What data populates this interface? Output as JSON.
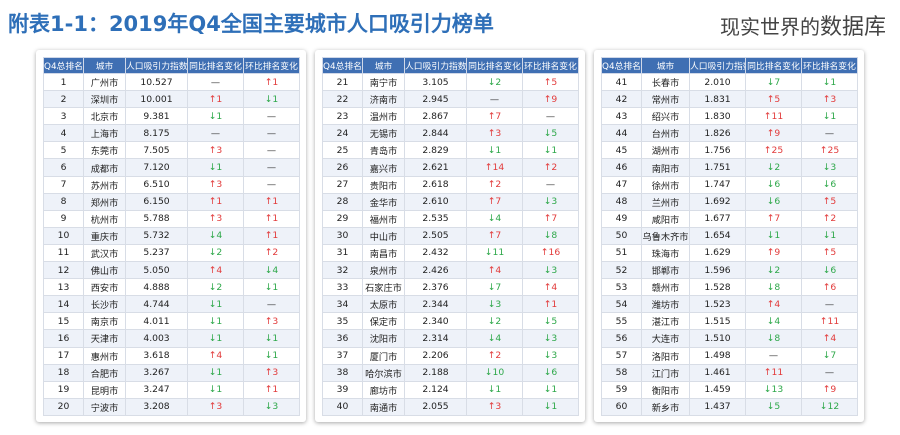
{
  "title": "附表1-1：2019年Q4全国主要城市人口吸引力榜单",
  "brand": {
    "part1": "现实世界的",
    "part2": "数据库"
  },
  "columns": [
    "Q4总排名",
    "城市",
    "人口吸引力指数",
    "同比排名变化",
    "环比排名变化"
  ],
  "panels": [
    {
      "rows": [
        [
          1,
          "广州市",
          "10.527",
          "—",
          "↑1"
        ],
        [
          2,
          "深圳市",
          "10.001",
          "↑1",
          "↓1"
        ],
        [
          3,
          "北京市",
          "9.381",
          "↓1",
          "—"
        ],
        [
          4,
          "上海市",
          "8.175",
          "—",
          "—"
        ],
        [
          5,
          "东莞市",
          "7.505",
          "↑3",
          "—"
        ],
        [
          6,
          "成都市",
          "7.120",
          "↓1",
          "—"
        ],
        [
          7,
          "苏州市",
          "6.510",
          "↑3",
          "—"
        ],
        [
          8,
          "郑州市",
          "6.150",
          "↑1",
          "↑1"
        ],
        [
          9,
          "杭州市",
          "5.788",
          "↑3",
          "↑1"
        ],
        [
          10,
          "重庆市",
          "5.732",
          "↓4",
          "↑1"
        ],
        [
          11,
          "武汉市",
          "5.237",
          "↓2",
          "↑2"
        ],
        [
          12,
          "佛山市",
          "5.050",
          "↑4",
          "↓4"
        ],
        [
          13,
          "西安市",
          "4.888",
          "↓2",
          "↓1"
        ],
        [
          14,
          "长沙市",
          "4.744",
          "↓1",
          "—"
        ],
        [
          15,
          "南京市",
          "4.011",
          "↓1",
          "↑3"
        ],
        [
          16,
          "天津市",
          "4.003",
          "↓1",
          "↓1"
        ],
        [
          17,
          "惠州市",
          "3.618",
          "↑4",
          "↓1"
        ],
        [
          18,
          "合肥市",
          "3.267",
          "↓1",
          "↑3"
        ],
        [
          19,
          "昆明市",
          "3.247",
          "↓1",
          "↑1"
        ],
        [
          20,
          "宁波市",
          "3.208",
          "↑3",
          "↓3"
        ]
      ]
    },
    {
      "rows": [
        [
          21,
          "南宁市",
          "3.105",
          "↓2",
          "↑5"
        ],
        [
          22,
          "济南市",
          "2.945",
          "—",
          "↑9"
        ],
        [
          23,
          "温州市",
          "2.867",
          "↑7",
          "—"
        ],
        [
          24,
          "无锡市",
          "2.844",
          "↑3",
          "↓5"
        ],
        [
          25,
          "青岛市",
          "2.829",
          "↓1",
          "↓1"
        ],
        [
          26,
          "嘉兴市",
          "2.621",
          "↑14",
          "↑2"
        ],
        [
          27,
          "贵阳市",
          "2.618",
          "↑2",
          "—"
        ],
        [
          28,
          "金华市",
          "2.610",
          "↑7",
          "↓3"
        ],
        [
          29,
          "福州市",
          "2.535",
          "↓4",
          "↑7"
        ],
        [
          30,
          "中山市",
          "2.505",
          "↑7",
          "↓8"
        ],
        [
          31,
          "南昌市",
          "2.432",
          "↓11",
          "↑16"
        ],
        [
          32,
          "泉州市",
          "2.426",
          "↑4",
          "↓3"
        ],
        [
          33,
          "石家庄市",
          "2.376",
          "↓7",
          "↑4"
        ],
        [
          34,
          "太原市",
          "2.344",
          "↓3",
          "↑1"
        ],
        [
          35,
          "保定市",
          "2.340",
          "↓2",
          "↓5"
        ],
        [
          36,
          "沈阳市",
          "2.314",
          "↓4",
          "↓3"
        ],
        [
          37,
          "厦门市",
          "2.206",
          "↑2",
          "↓3"
        ],
        [
          38,
          "哈尔滨市",
          "2.188",
          "↓10",
          "↓6"
        ],
        [
          39,
          "廊坊市",
          "2.124",
          "↓1",
          "↓1"
        ],
        [
          40,
          "南通市",
          "2.055",
          "↑3",
          "↓1"
        ]
      ]
    },
    {
      "rows": [
        [
          41,
          "长春市",
          "2.010",
          "↓7",
          "↓1"
        ],
        [
          42,
          "常州市",
          "1.831",
          "↑5",
          "↑3"
        ],
        [
          43,
          "绍兴市",
          "1.830",
          "↑11",
          "↓1"
        ],
        [
          44,
          "台州市",
          "1.826",
          "↑9",
          "—"
        ],
        [
          45,
          "湖州市",
          "1.756",
          "↑25",
          "↑25"
        ],
        [
          46,
          "南阳市",
          "1.751",
          "↓2",
          "↓3"
        ],
        [
          47,
          "徐州市",
          "1.747",
          "↓6",
          "↓6"
        ],
        [
          48,
          "兰州市",
          "1.692",
          "↓6",
          "↑5"
        ],
        [
          49,
          "咸阳市",
          "1.677",
          "↑7",
          "↑2"
        ],
        [
          50,
          "乌鲁木齐市",
          "1.654",
          "↓1",
          "↓1"
        ],
        [
          51,
          "珠海市",
          "1.629",
          "↑9",
          "↑5"
        ],
        [
          52,
          "邯郸市",
          "1.596",
          "↓2",
          "↓6"
        ],
        [
          53,
          "赣州市",
          "1.528",
          "↓8",
          "↑6"
        ],
        [
          54,
          "潍坊市",
          "1.523",
          "↑4",
          "—"
        ],
        [
          55,
          "湛江市",
          "1.515",
          "↓4",
          "↑11"
        ],
        [
          56,
          "大连市",
          "1.510",
          "↓8",
          "↑4"
        ],
        [
          57,
          "洛阳市",
          "1.498",
          "—",
          "↓7"
        ],
        [
          58,
          "江门市",
          "1.461",
          "↑11",
          "—"
        ],
        [
          59,
          "衡阳市",
          "1.459",
          "↓13",
          "↑9"
        ],
        [
          60,
          "新乡市",
          "1.437",
          "↓5",
          "↓12"
        ]
      ]
    }
  ]
}
